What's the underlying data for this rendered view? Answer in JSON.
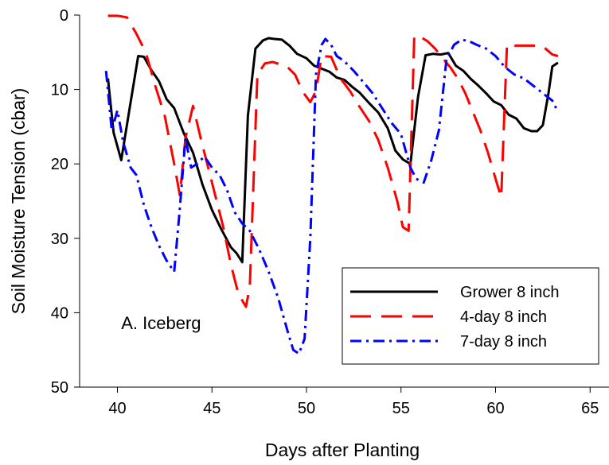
{
  "chart_data": {
    "type": "line",
    "title": "",
    "xlabel": "Days after Planting",
    "ylabel": "Soil Moisture Tension (cbar)",
    "xlim": [
      38,
      66
    ],
    "ylim": [
      0,
      50
    ],
    "y_inverted": true,
    "xticks": [
      40,
      45,
      50,
      55,
      60,
      65
    ],
    "yticks": [
      0,
      10,
      20,
      30,
      40,
      50
    ],
    "grid": false,
    "legend_position": "lower-right",
    "annotation": "A. Iceberg",
    "series": [
      {
        "name": "Grower 8 inch",
        "color": "#000000",
        "dash": "solid",
        "x": [
          39.5,
          39.8,
          40.2,
          40.6,
          41.1,
          41.4,
          41.8,
          42.2,
          42.6,
          43.0,
          43.5,
          44.0,
          44.5,
          45.0,
          45.5,
          46.0,
          46.3,
          46.6,
          46.9,
          47.3,
          47.7,
          48.0,
          48.3,
          48.7,
          49.1,
          49.5,
          50.0,
          50.4,
          50.8,
          51.2,
          51.6,
          52.0,
          52.4,
          52.8,
          53.3,
          53.8,
          54.3,
          54.7,
          55.1,
          55.5,
          55.9,
          56.3,
          56.7,
          57.1,
          57.5,
          57.9,
          58.3,
          58.7,
          59.1,
          59.5,
          59.9,
          60.3,
          60.7,
          61.1,
          61.5,
          61.9,
          62.2,
          62.5,
          62.8,
          63.0,
          63.3
        ],
        "values": [
          8.5,
          15.8,
          19.5,
          13.2,
          5.5,
          5.6,
          7.4,
          8.9,
          11.3,
          12.5,
          15.8,
          18.5,
          22.8,
          26.2,
          28.8,
          31.2,
          32.0,
          33.2,
          13.5,
          4.5,
          3.4,
          3.1,
          3.2,
          3.3,
          4.1,
          5.2,
          5.8,
          6.8,
          7.2,
          7.6,
          8.4,
          8.7,
          9.6,
          10.4,
          11.8,
          13.1,
          15.2,
          18.2,
          19.4,
          20.0,
          11.0,
          5.4,
          5.2,
          5.3,
          5.1,
          6.8,
          7.5,
          8.6,
          9.5,
          10.5,
          11.6,
          12.1,
          13.4,
          13.9,
          15.2,
          15.6,
          15.6,
          14.8,
          10.5,
          6.9,
          6.4
        ]
      },
      {
        "name": "4-day 8 inch",
        "color": "#ff0000",
        "dash": "long-dash",
        "x": [
          39.5,
          40.0,
          40.5,
          41.0,
          41.5,
          42.0,
          42.5,
          43.0,
          43.3,
          43.6,
          44.0,
          44.4,
          44.8,
          45.2,
          45.6,
          46.0,
          46.4,
          46.8,
          47.0,
          47.4,
          47.8,
          48.2,
          48.6,
          49.0,
          49.4,
          49.8,
          50.2,
          50.5,
          50.8,
          51.3,
          51.8,
          52.3,
          52.8,
          53.3,
          53.8,
          54.3,
          54.8,
          55.1,
          55.4,
          55.7,
          56.0,
          56.4,
          56.8,
          57.2,
          57.6,
          58.0,
          58.4,
          58.8,
          59.2,
          59.6,
          60.0,
          60.3,
          60.6,
          61.0,
          61.5,
          62.0,
          62.5,
          63.0,
          63.3
        ],
        "values": [
          0.1,
          0.1,
          0.3,
          2.5,
          5.0,
          9.5,
          13.5,
          20.0,
          24.2,
          16.5,
          12.2,
          16.5,
          20.5,
          24.5,
          28.5,
          33.5,
          37.5,
          39.2,
          36.5,
          8.0,
          6.5,
          6.3,
          6.6,
          7.0,
          8.0,
          10.3,
          11.7,
          10.2,
          5.5,
          5.6,
          8.5,
          10.2,
          12.3,
          14.2,
          16.8,
          20.5,
          25.0,
          28.5,
          29.0,
          2.8,
          2.9,
          3.5,
          4.5,
          5.8,
          7.0,
          8.5,
          10.5,
          13.0,
          15.5,
          18.5,
          22.0,
          24.5,
          4.0,
          4.1,
          4.1,
          4.1,
          4.2,
          5.3,
          5.5
        ]
      },
      {
        "name": "7-day 8 inch",
        "color": "#0000ff",
        "dash": "dash-dot",
        "x": [
          39.4,
          39.7,
          40.0,
          40.3,
          40.7,
          41.0,
          41.4,
          41.8,
          42.2,
          42.6,
          43.0,
          43.3,
          43.6,
          43.9,
          44.2,
          44.6,
          45.0,
          45.4,
          45.8,
          46.2,
          46.6,
          47.0,
          47.5,
          48.0,
          48.5,
          49.0,
          49.3,
          49.6,
          49.9,
          50.2,
          50.5,
          50.8,
          51.0,
          51.3,
          51.6,
          52.0,
          52.5,
          53.0,
          53.5,
          54.0,
          54.5,
          55.0,
          55.5,
          55.8,
          56.2,
          56.6,
          57.0,
          57.4,
          57.8,
          58.2,
          58.6,
          59.0,
          59.5,
          60.0,
          60.5,
          61.0,
          61.5,
          62.0,
          62.5,
          63.0,
          63.3
        ],
        "values": [
          7.5,
          15.5,
          12.8,
          17.0,
          20.5,
          21.5,
          25.5,
          28.5,
          31.0,
          33.0,
          34.5,
          26.0,
          16.5,
          20.5,
          20.0,
          19.0,
          20.5,
          21.5,
          23.5,
          26.5,
          28.0,
          29.0,
          31.5,
          34.5,
          38.0,
          42.5,
          45.0,
          45.5,
          43.5,
          30.0,
          8.0,
          4.0,
          3.2,
          4.0,
          5.5,
          6.2,
          7.5,
          9.0,
          10.5,
          12.5,
          14.5,
          16.0,
          20.5,
          22.0,
          22.5,
          19.5,
          15.5,
          6.0,
          4.0,
          3.3,
          3.5,
          4.0,
          4.5,
          5.5,
          7.0,
          8.0,
          8.5,
          9.5,
          10.5,
          11.5,
          13.0
        ]
      }
    ]
  }
}
